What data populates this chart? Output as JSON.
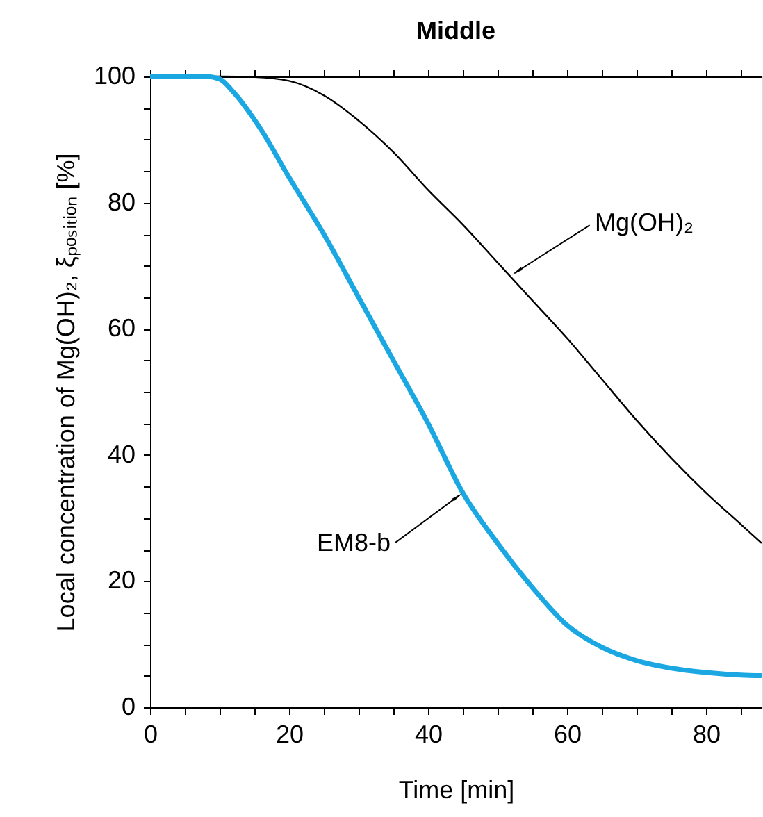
{
  "chart_data": {
    "type": "line",
    "title": "Middle",
    "xlabel": "Time [min]",
    "ylabel": "Local concentration of Mg(OH)₂, ξₚₒₛᵢₜᵢₒₙ [%]",
    "xlim": [
      0,
      88
    ],
    "ylim": [
      0,
      100
    ],
    "xticks": [
      0,
      {
        "value": 5,
        "label": null
      },
      {
        "value": 10,
        "label": null
      },
      {
        "value": 15,
        "label": null
      },
      20,
      {
        "value": 25,
        "label": null
      },
      {
        "value": 30,
        "label": null
      },
      {
        "value": 35,
        "label": null
      },
      40,
      {
        "value": 45,
        "label": null
      },
      {
        "value": 50,
        "label": null
      },
      {
        "value": 55,
        "label": null
      },
      60,
      {
        "value": 65,
        "label": null
      },
      {
        "value": 70,
        "label": null
      },
      {
        "value": 75,
        "label": null
      },
      80,
      {
        "value": 85,
        "label": null
      }
    ],
    "yticks": [
      0,
      {
        "value": 5,
        "label": null
      },
      {
        "value": 10,
        "label": null
      },
      {
        "value": 15,
        "label": null
      },
      20,
      {
        "value": 25,
        "label": null
      },
      {
        "value": 30,
        "label": null
      },
      {
        "value": 35,
        "label": null
      },
      40,
      {
        "value": 45,
        "label": null
      },
      {
        "value": 50,
        "label": null
      },
      {
        "value": 55,
        "label": null
      },
      60,
      {
        "value": 65,
        "label": null
      },
      {
        "value": 70,
        "label": null
      },
      {
        "value": 75,
        "label": null
      },
      80,
      {
        "value": 85,
        "label": null
      },
      {
        "value": 90,
        "label": null
      },
      {
        "value": 95,
        "label": null
      },
      100
    ],
    "grid": false,
    "marker": "none",
    "line_style": "solid",
    "x": [
      0,
      10,
      15,
      20,
      25,
      30,
      35,
      40,
      45,
      50,
      55,
      60,
      65,
      70,
      75,
      80,
      85,
      88
    ],
    "series": [
      {
        "color": "#000000",
        "values": [
          100,
          100,
          99.9,
          99.3,
          97,
          93,
          88,
          82,
          76.5,
          70.5,
          64.5,
          58.5,
          52,
          45.5,
          39.5,
          34,
          29,
          26
        ]
      },
      {
        "color": "#1ba7e1",
        "x": [
          0,
          8,
          10,
          12,
          16,
          20,
          25,
          30,
          35,
          40,
          45,
          50,
          55,
          60,
          65,
          70,
          75,
          80,
          85,
          88
        ],
        "values": [
          100,
          100,
          99.6,
          97.5,
          91.5,
          84,
          75,
          65,
          55,
          45,
          34,
          26,
          19,
          13,
          9.5,
          7.4,
          6.2,
          5.5,
          5.1,
          5
        ]
      }
    ],
    "annotations": [
      {
        "text": "Mg(OH)₂",
        "x": 52,
        "y": 68.5
      },
      {
        "text": "EM8-b",
        "x": 45,
        "y": 34
      }
    ]
  }
}
